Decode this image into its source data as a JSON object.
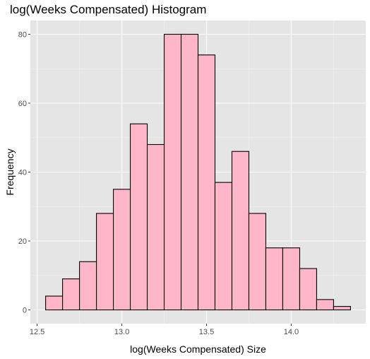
{
  "chart_data": {
    "type": "bar",
    "title": "log(Weeks Compensated) Histogram",
    "xlabel": "log(Weeks Compensated) Size",
    "ylabel": "Frequency",
    "bin_edges": [
      12.55,
      12.65,
      12.75,
      12.85,
      12.95,
      13.05,
      13.15,
      13.25,
      13.35,
      13.45,
      13.55,
      13.65,
      13.75,
      13.85,
      13.95,
      14.05,
      14.15,
      14.25,
      14.35
    ],
    "values": [
      4,
      9,
      14,
      28,
      35,
      54,
      48,
      80,
      80,
      74,
      37,
      46,
      28,
      18,
      18,
      12,
      3,
      1
    ],
    "xlim": [
      12.46,
      14.44
    ],
    "ylim": [
      -4,
      84
    ],
    "x_ticks": [
      12.5,
      13.0,
      13.5,
      14.0
    ],
    "x_tick_labels": [
      "12.5",
      "13.0",
      "13.5",
      "14.0"
    ],
    "y_ticks": [
      0,
      20,
      40,
      60,
      80
    ],
    "y_tick_labels": [
      "0",
      "20",
      "40",
      "60",
      "80"
    ],
    "grid": true,
    "bar_fill": "#ffb6c8",
    "bar_stroke": "#000000",
    "panel_background": "#e5e5e5"
  }
}
